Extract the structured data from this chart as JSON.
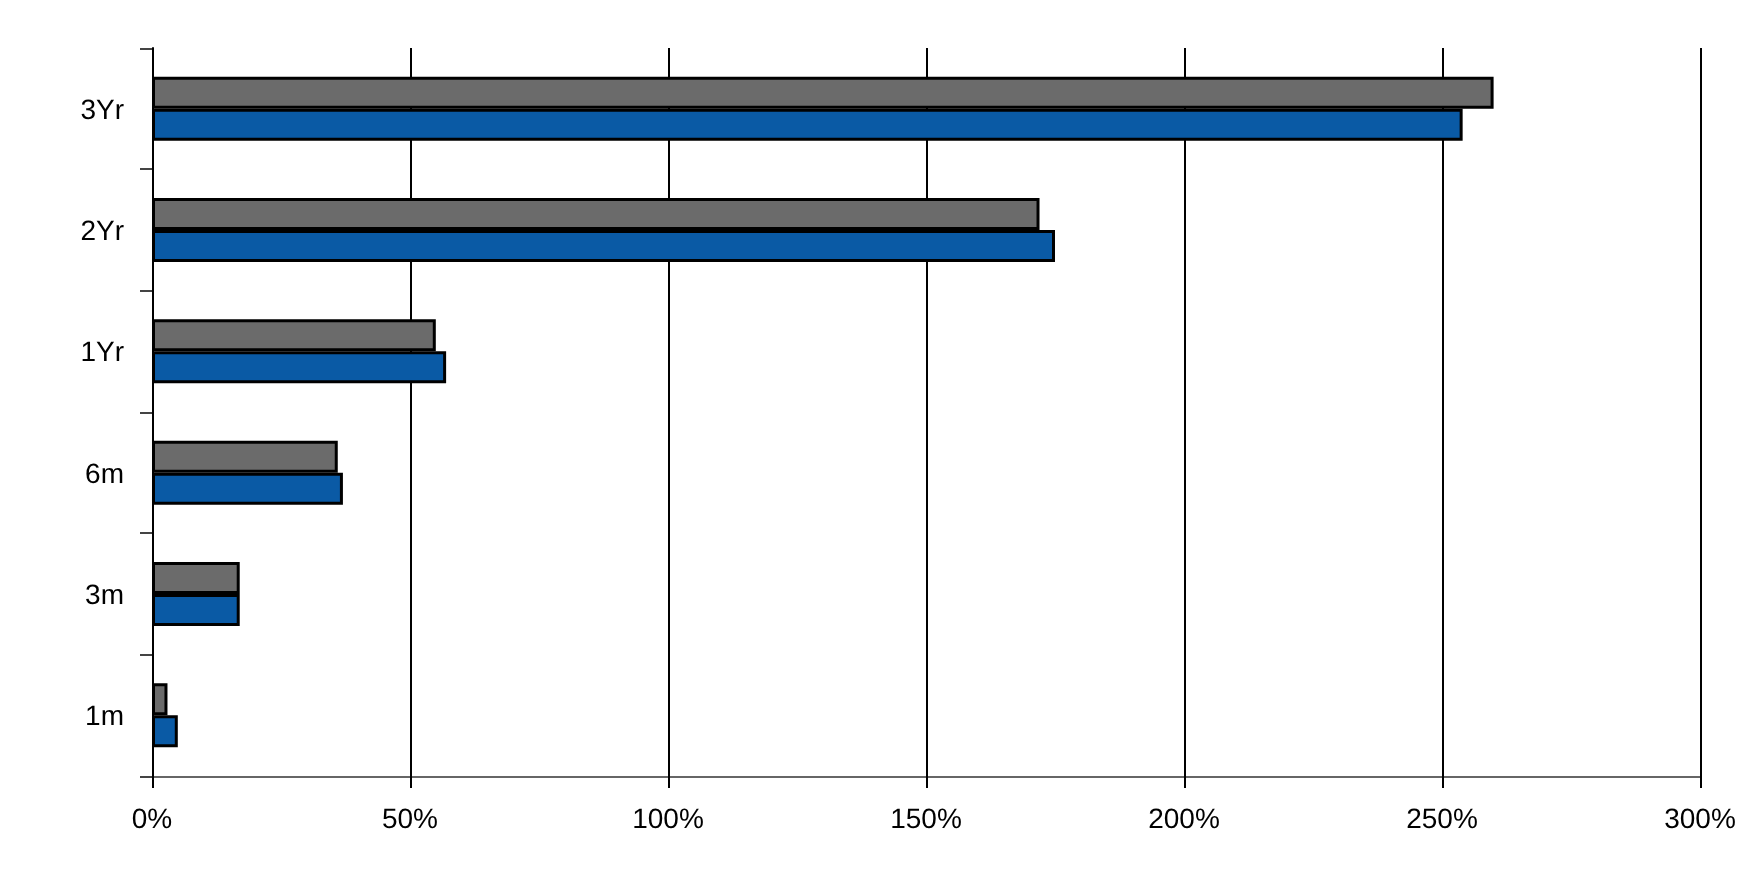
{
  "chart_data": {
    "type": "bar",
    "orientation": "horizontal",
    "categories": [
      "3Yr",
      "2Yr",
      "1Yr",
      "6m",
      "3m",
      "1m"
    ],
    "series": [
      {
        "color": "#6b6b6b",
        "values": [
          260,
          172,
          55,
          36,
          17,
          3
        ]
      },
      {
        "color": "#0a5aa5",
        "values": [
          254,
          175,
          57,
          37,
          17,
          5
        ]
      }
    ],
    "xlim": [
      0,
      300
    ],
    "xticks": [
      {
        "value": 0,
        "label": "0%"
      },
      {
        "value": 50,
        "label": "50%"
      },
      {
        "value": 100,
        "label": "100%"
      },
      {
        "value": 150,
        "label": "150%"
      },
      {
        "value": 200,
        "label": "200%"
      },
      {
        "value": 250,
        "label": "250%"
      },
      {
        "value": 300,
        "label": "300%"
      }
    ],
    "grid": "x"
  }
}
